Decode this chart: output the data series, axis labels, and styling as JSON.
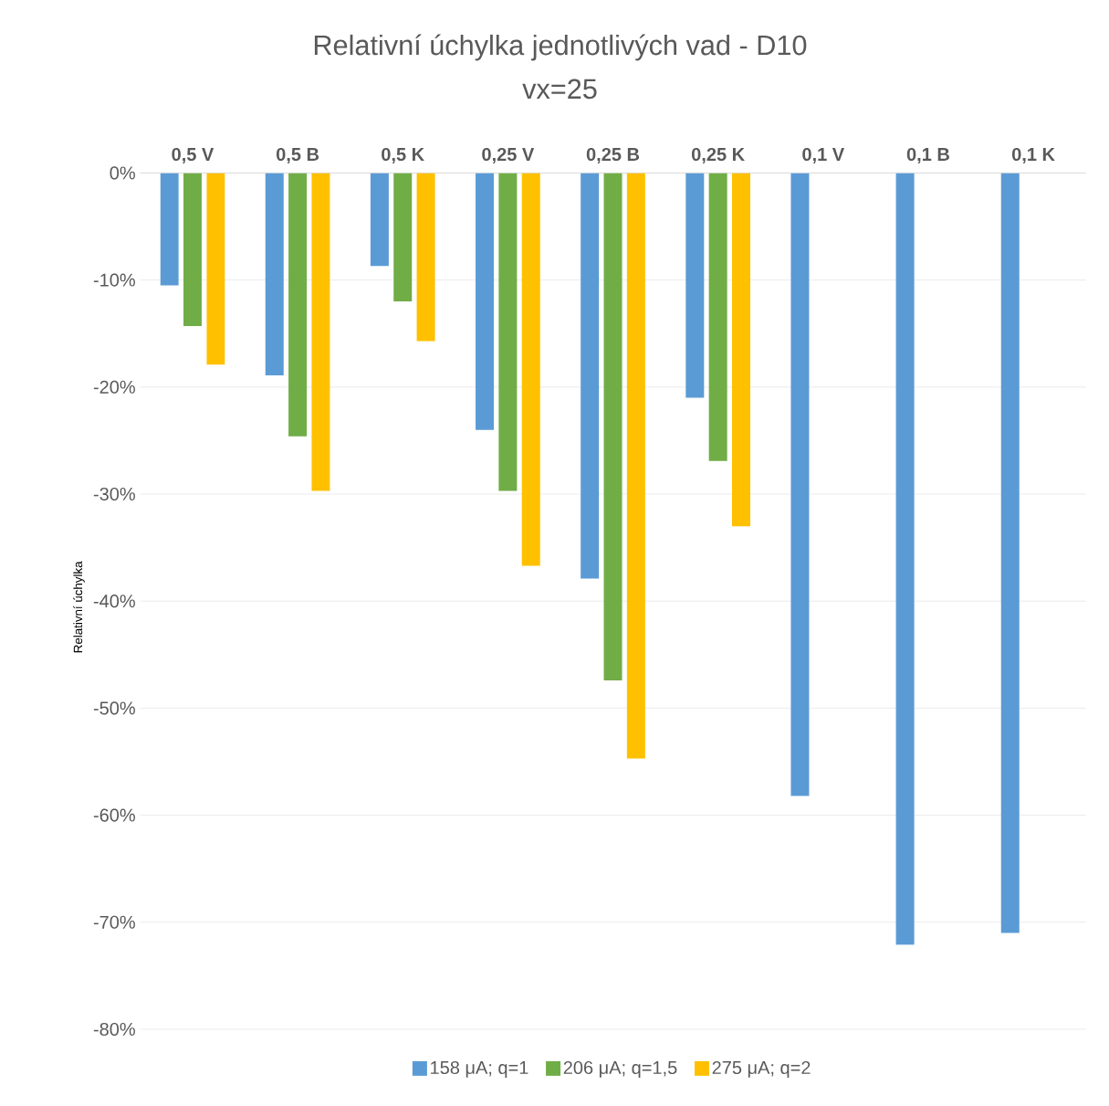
{
  "chart_data": {
    "type": "bar",
    "title": "Relativní úchylka jednotlivých vad - D10",
    "subtitle": "vx=25",
    "ylabel": "Relativní úchylka",
    "categories": [
      "0,5 V",
      "0,5 B",
      "0,5 K",
      "0,25 V",
      "0,25 B",
      "0,25 K",
      "0,1 V",
      "0,1 B",
      "0,1 K"
    ],
    "series": [
      {
        "name": "158 μA; q=1",
        "color": "#5b9bd5",
        "values": [
          -10.5,
          -18.9,
          -8.7,
          -24.0,
          -37.9,
          -21.0,
          -58.2,
          -72.1,
          -71.0
        ]
      },
      {
        "name": "206 μA; q=1,5",
        "color": "#70ad47",
        "values": [
          -14.3,
          -24.6,
          -12.0,
          -29.7,
          -47.4,
          -26.9,
          null,
          null,
          null
        ]
      },
      {
        "name": "275 μA; q=2",
        "color": "#ffc000",
        "values": [
          -17.9,
          -29.7,
          -15.7,
          -36.7,
          -54.7,
          -33.0,
          null,
          null,
          null
        ]
      }
    ],
    "ylim": [
      -80,
      0
    ],
    "yticks": [
      {
        "value": -80,
        "label": "-80%"
      },
      {
        "value": -70,
        "label": "-70%"
      },
      {
        "value": -60,
        "label": "-60%"
      },
      {
        "value": -50,
        "label": "-50%"
      },
      {
        "value": -40,
        "label": "-40%"
      },
      {
        "value": -30,
        "label": "-30%"
      },
      {
        "value": -20,
        "label": "-20%"
      },
      {
        "value": -10,
        "label": "-10%"
      },
      {
        "value": 0,
        "label": "0%"
      }
    ],
    "grid": "y",
    "legend": "bottom"
  }
}
